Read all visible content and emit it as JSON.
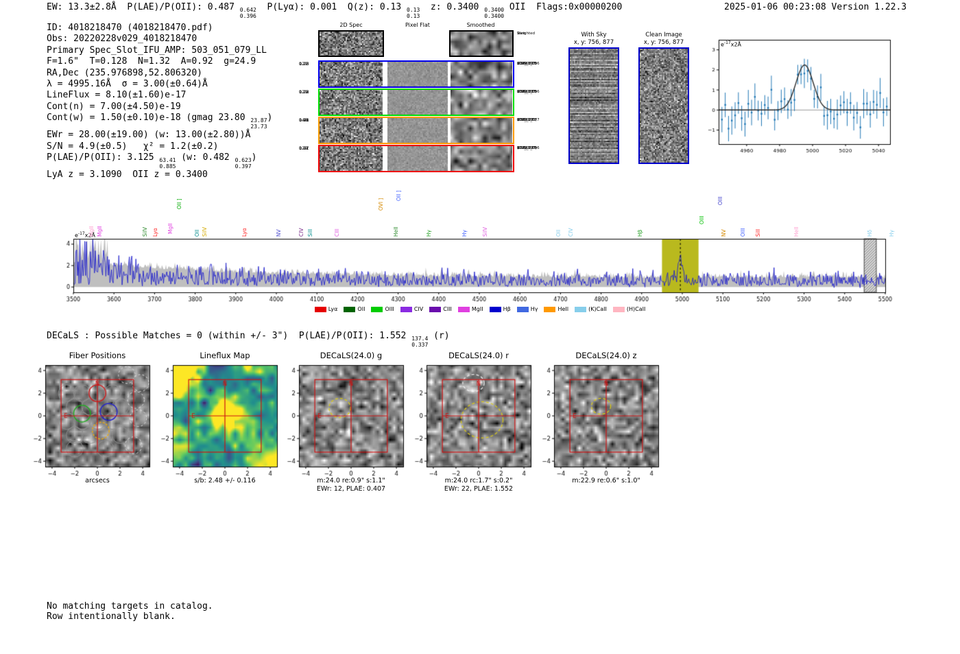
{
  "header": {
    "left_tokens": [
      {
        "t": "EW: 13.3±2.8Å  P(LAE)/P(OII): 0.487 "
      },
      {
        "s": [
          "0.642",
          "0.396"
        ]
      },
      {
        "t": "  P(Lyα): 0.001  Q(z): 0.13 "
      },
      {
        "s": [
          "0.13",
          "0.13"
        ]
      },
      {
        "t": "  z: 0.3400 "
      },
      {
        "s": [
          "0.3400",
          "0.3400"
        ]
      },
      {
        "t": " OII  Flags:0x00000200"
      }
    ],
    "right": "2025-01-06 00:23:08  Version 1.22.3"
  },
  "info_lines": [
    [
      {
        "t": "ID: 4018218470 (4018218470.pdf)"
      }
    ],
    [
      {
        "t": "Obs: 20220228v029_4018218470"
      }
    ],
    [
      {
        "t": "Primary Spec_Slot_IFU_AMP: 503_051_079_LL"
      }
    ],
    [
      {
        "t": "F=1.6\"  T=0.128  N=1.32  A=0.92  g=24.9"
      }
    ],
    [
      {
        "t": "RA,Dec (235.976898,52.806320)"
      }
    ],
    [
      {
        "t": "λ = 4995.16Å  σ = 3.00(±0.64)Å"
      }
    ],
    [
      {
        "t": "LineFlux = 8.10(±1.60)e-17"
      }
    ],
    [
      {
        "t": "Cont(n) = 7.00(±4.50)e-19"
      }
    ],
    [
      {
        "t": "Cont(w) = 1.50(±0.10)e-18 (gmag 23.80 "
      },
      {
        "s": [
          "23.87",
          "23.73"
        ]
      },
      {
        "t": ")"
      }
    ],
    [
      {
        "t": "EWr = 28.00(±19.00) (w: 13.00(±2.80))Å"
      }
    ],
    [
      {
        "t": "S/N = 4.9(±0.5)   χ² = 1.2(±0.2)"
      }
    ],
    [
      {
        "t": "P(LAE)/P(OII): 3.125 "
      },
      {
        "s": [
          "63.41",
          "0.885"
        ]
      },
      {
        "t": " (w: 0.482 "
      },
      {
        "s": [
          "0.623",
          "0.397"
        ]
      },
      {
        "t": ")"
      }
    ],
    [
      {
        "t": "LyA z = 3.1090  OII z = 0.3400"
      }
    ]
  ],
  "cutouts2d": {
    "col_titles": [
      "2D Spec",
      "Pixel Flat",
      "Smoothed"
    ],
    "rows": [
      {
        "border": "#000000",
        "left": [],
        "right": [
          "Weighted",
          "Sum"
        ]
      },
      {
        "border": "#0000ee",
        "left": [
          "0.26",
          "1.23",
          "129"
        ],
        "right": [
          "0.70\"",
          "(756, 877)",
          "20220228",
          "v029_01",
          "503_LL_096"
        ]
      },
      {
        "border": "#00dd00",
        "left": [
          "0.22",
          "1.26",
          "129"
        ],
        "right": [
          "0.97\"",
          "(756, 877)",
          "20220228",
          "v029_03",
          "503_LL_096"
        ]
      },
      {
        "border": "#ff9900",
        "left": [
          "0.21",
          "1.48",
          "148"
        ],
        "right": [
          "0.91\"",
          "(757, 711)",
          "20220228",
          "v029_07",
          "503_LL_077"
        ]
      },
      {
        "border": "#ee0000",
        "left": [
          "0.07",
          "1.71",
          "129"
        ],
        "right": [
          "1.63\"",
          "(756, 877)",
          "20220228",
          "v029_07",
          "503_LL_096"
        ]
      }
    ]
  },
  "sky_panels": [
    {
      "title": "With Sky",
      "subtitle": "x, y: 756, 877"
    },
    {
      "title": "Clean Image",
      "subtitle": "x, y: 756, 877"
    }
  ],
  "decals_tokens": [
    {
      "t": "DECaLS : Possible Matches = 0 (within +/- 3\")  P(LAE)/P(OII): 1.552 "
    },
    {
      "s": [
        "137.4",
        "0.337"
      ]
    },
    {
      "t": " (r)"
    }
  ],
  "bottom": [
    "No matching targets in catalog.",
    "Row intentionally blank."
  ],
  "chart_data": [
    {
      "id": "emission_line_fit",
      "type": "scatter",
      "title": "",
      "x_range": [
        4943,
        5047
      ],
      "y_range": [
        -1.7,
        3.5
      ],
      "x_ticks": [
        4960,
        4980,
        5000,
        5020,
        5040
      ],
      "y_ticks": [
        -1,
        0,
        1,
        2,
        3
      ],
      "corner_label": {
        "base": "e",
        "sup": "-17",
        "rest": "x2Å"
      },
      "fit": {
        "center": 4995.16,
        "sigma": 5.2,
        "amplitude": 2.25,
        "color": "#2b2b2b"
      },
      "points": {
        "step": 2,
        "noise_sigma": 0.42,
        "err_base": 0.45,
        "color": "#1f77b4",
        "seed": 11
      }
    },
    {
      "id": "full_spectrum",
      "type": "line",
      "x_range": [
        3500,
        5500
      ],
      "y_range": [
        -0.5,
        4.5
      ],
      "x_ticks": [
        3500,
        3600,
        3700,
        3800,
        3900,
        4000,
        4100,
        4200,
        4300,
        4400,
        4500,
        4600,
        4700,
        4800,
        4900,
        5000,
        5100,
        5200,
        5300,
        5400,
        5500
      ],
      "y_ticks": [
        0,
        2,
        4
      ],
      "corner_label": {
        "base": "e",
        "sup": "-17",
        "rest": "x2Å"
      },
      "line_color": "#2020cc",
      "envelope_color": "#b8b8b8",
      "highlight_band": {
        "x0": 4950,
        "x1": 5040,
        "color": "#b9b91e",
        "center_line": 4995.16
      },
      "hatch_band": {
        "x0": 5448,
        "x1": 5478
      },
      "peak": {
        "center": 4995.16,
        "amplitude": 2.1,
        "sigma": 6
      },
      "seed": 5,
      "line_labels": [
        {
          "wl": 3541,
          "text": "MgII",
          "color": "#ff9ecf",
          "off": 0
        },
        {
          "wl": 3560,
          "text": "MgII",
          "color": "#e040e0",
          "off": 0
        },
        {
          "wl": 3672,
          "text": "SiIV",
          "color": "#2e8b2e",
          "off": 0
        },
        {
          "wl": 3697,
          "text": "Lyα",
          "color": "#ff2222",
          "off": 0
        },
        {
          "wl": 3735,
          "text": "MgII",
          "color": "#e040e0",
          "off": 4
        },
        {
          "wl": 3757,
          "text": "OII ]",
          "color": "#00aa00",
          "off": 40
        },
        {
          "wl": 3800,
          "text": "OII",
          "color": "#008b8b",
          "off": 0
        },
        {
          "wl": 3820,
          "text": "SiIV",
          "color": "#d4aa00",
          "off": 0
        },
        {
          "wl": 3917,
          "text": "Lyα",
          "color": "#ff2222",
          "off": 0
        },
        {
          "wl": 4002,
          "text": "NV",
          "color": "#5050d0",
          "off": 0
        },
        {
          "wl": 4058,
          "text": "CIV",
          "color": "#7b2d8b",
          "off": 0
        },
        {
          "wl": 4080,
          "text": "SiII",
          "color": "#008b8b",
          "off": 0
        },
        {
          "wl": 4146,
          "text": "CIII",
          "color": "#e060e0",
          "off": 0
        },
        {
          "wl": 4253,
          "text": "OVI ]",
          "color": "#d48800",
          "off": 38
        },
        {
          "wl": 4290,
          "text": "HeII",
          "color": "#2e8b2e",
          "off": 0
        },
        {
          "wl": 4297,
          "text": "OII ]",
          "color": "#4060ff",
          "off": 52
        },
        {
          "wl": 4371,
          "text": "Hγ",
          "color": "#22a022",
          "off": 0
        },
        {
          "wl": 4460,
          "text": "Hγ",
          "color": "#4060ff",
          "off": 0
        },
        {
          "wl": 4510,
          "text": "SiIV",
          "color": "#e060e0",
          "off": 0
        },
        {
          "wl": 4690,
          "text": "OII",
          "color": "#87ceeb",
          "off": 0
        },
        {
          "wl": 4722,
          "text": "CIV",
          "color": "#87ceeb",
          "off": 0
        },
        {
          "wl": 4891,
          "text": "Hβ",
          "color": "#22a022",
          "off": 0
        },
        {
          "wl": 5043,
          "text": "OIII",
          "color": "#00c000",
          "off": 18
        },
        {
          "wl": 5090,
          "text": "OIII",
          "color": "#4040cc",
          "off": 46
        },
        {
          "wl": 5098,
          "text": "NV",
          "color": "#d48800",
          "off": 0
        },
        {
          "wl": 5145,
          "text": "OIII",
          "color": "#4060ff",
          "off": 0
        },
        {
          "wl": 5182,
          "text": "SiII",
          "color": "#ff2222",
          "off": 0
        },
        {
          "wl": 5277,
          "text": "HeII",
          "color": "#ff9ecf",
          "off": 0
        },
        {
          "wl": 5458,
          "text": "Hδ",
          "color": "#87ceeb",
          "off": 0
        },
        {
          "wl": 5512,
          "text": "Hγ",
          "color": "#87ceeb",
          "off": 0
        }
      ],
      "legend": [
        {
          "label": "Lyα",
          "color": "#e60000"
        },
        {
          "label": "OII",
          "color": "#006400"
        },
        {
          "label": "OIII",
          "color": "#00cc00"
        },
        {
          "label": "CIV",
          "color": "#8a2be2"
        },
        {
          "label": "CIII",
          "color": "#6a0dad"
        },
        {
          "label": "MgII",
          "color": "#e040e0"
        },
        {
          "label": "Hβ",
          "color": "#0000cd"
        },
        {
          "label": "Hγ",
          "color": "#4169e1"
        },
        {
          "label": "HeII",
          "color": "#ff9900"
        },
        {
          "label": "(K)CaII",
          "color": "#87ceeb"
        },
        {
          "label": "(H)CaII",
          "color": "#ffb6c1"
        }
      ]
    },
    {
      "id": "cutout_row",
      "type": "image-grid",
      "axis_ticks": [
        -4,
        -2,
        0,
        2,
        4
      ],
      "axis_range": [
        -4.6,
        4.6
      ],
      "box_half": 3.2,
      "accent": "#cc1111",
      "panels": [
        {
          "title": "Fiber Positions",
          "xlabel": "arcsecs",
          "style": "gray",
          "seed": 21,
          "fibers": {
            "radius": 0.74,
            "colored": [
              {
                "x": 0.0,
                "y": 2.0,
                "color": "#cc2222",
                "dash": false
              },
              {
                "x": 1.0,
                "y": 0.35,
                "color": "#2222cc",
                "dash": false
              },
              {
                "x": -1.35,
                "y": 0.2,
                "color": "#22aa22",
                "dash": false
              },
              {
                "x": 0.3,
                "y": -1.3,
                "color": "#e6a817",
                "dash": true
              }
            ],
            "gray": [
              [
                -2.7,
                2.0
              ],
              [
                -1.35,
                2.0
              ],
              [
                1.35,
                2.0
              ],
              [
                -2.0,
                0.8
              ],
              [
                -0.65,
                0.8
              ],
              [
                2.05,
                0.8
              ],
              [
                -2.7,
                -0.45
              ],
              [
                -1.35,
                -0.45
              ],
              [
                0.0,
                -0.45
              ],
              [
                1.35,
                -0.45
              ],
              [
                -2.0,
                -1.7
              ],
              [
                -0.65,
                -1.7
              ],
              [
                2.05,
                -1.7
              ],
              [
                0.7,
                -2.9
              ],
              [
                -2.0,
                -2.9
              ]
            ],
            "white_dash": [
              [
                3.4,
                1.4
              ],
              [
                3.6,
                -0.2
              ],
              [
                3.2,
                -2.6
              ],
              [
                3.8,
                2.9
              ],
              [
                2.6,
                3.6
              ]
            ]
          }
        },
        {
          "title": "Lineflux Map",
          "caption1": "s/b: 2.48 +/- 0.116",
          "style": "viridis",
          "seed": 22,
          "blobs": [
            {
              "x": 0.1,
              "y": 0.1,
              "a": 1.0,
              "s": 1.2
            },
            {
              "x": -4.2,
              "y": 4.2,
              "a": 1.2,
              "s": 1.4
            },
            {
              "x": 4.0,
              "y": -4.4,
              "a": 0.8,
              "s": 1.6
            },
            {
              "x": -4.4,
              "y": -2.4,
              "a": 0.5,
              "s": 1.2
            },
            {
              "x": 2.2,
              "y": 4.4,
              "a": 0.4,
              "s": 1.1
            }
          ]
        },
        {
          "title": "DECaLS(24.0) g",
          "caption1": "m:24.0  re:0.9\"  s:1.1\"",
          "caption2": "EWr: 12, PLAE: 0.407",
          "style": "gray",
          "seed": 23,
          "ellipses": [
            {
              "x": -1.0,
              "y": 0.7,
              "rx": 0.95,
              "ry": 0.85,
              "color": "#d9c919",
              "dash": true
            }
          ]
        },
        {
          "title": "DECaLS(24.0) r",
          "caption1": "m:24.0 rc:1.7\"  s:0.2\"",
          "caption2": "EWr: 22, PLAE: 1.552",
          "style": "gray",
          "seed": 24,
          "ellipses": [
            {
              "x": 0.3,
              "y": -0.35,
              "rx": 1.85,
              "ry": 1.6,
              "color": "#d9c919",
              "dash": true
            },
            {
              "x": -0.45,
              "y": 2.9,
              "rx": 0.95,
              "ry": 0.75,
              "color": "#eeeeee",
              "dash": true
            }
          ]
        },
        {
          "title": "DECaLS(24.0) z",
          "caption1": "m:22.9  re:0.6\"  s:1.0\"",
          "style": "gray",
          "seed": 25,
          "ellipses": [
            {
              "x": -0.45,
              "y": 0.85,
              "rx": 0.85,
              "ry": 0.7,
              "color": "#d9c919",
              "dash": true
            }
          ]
        }
      ]
    }
  ]
}
